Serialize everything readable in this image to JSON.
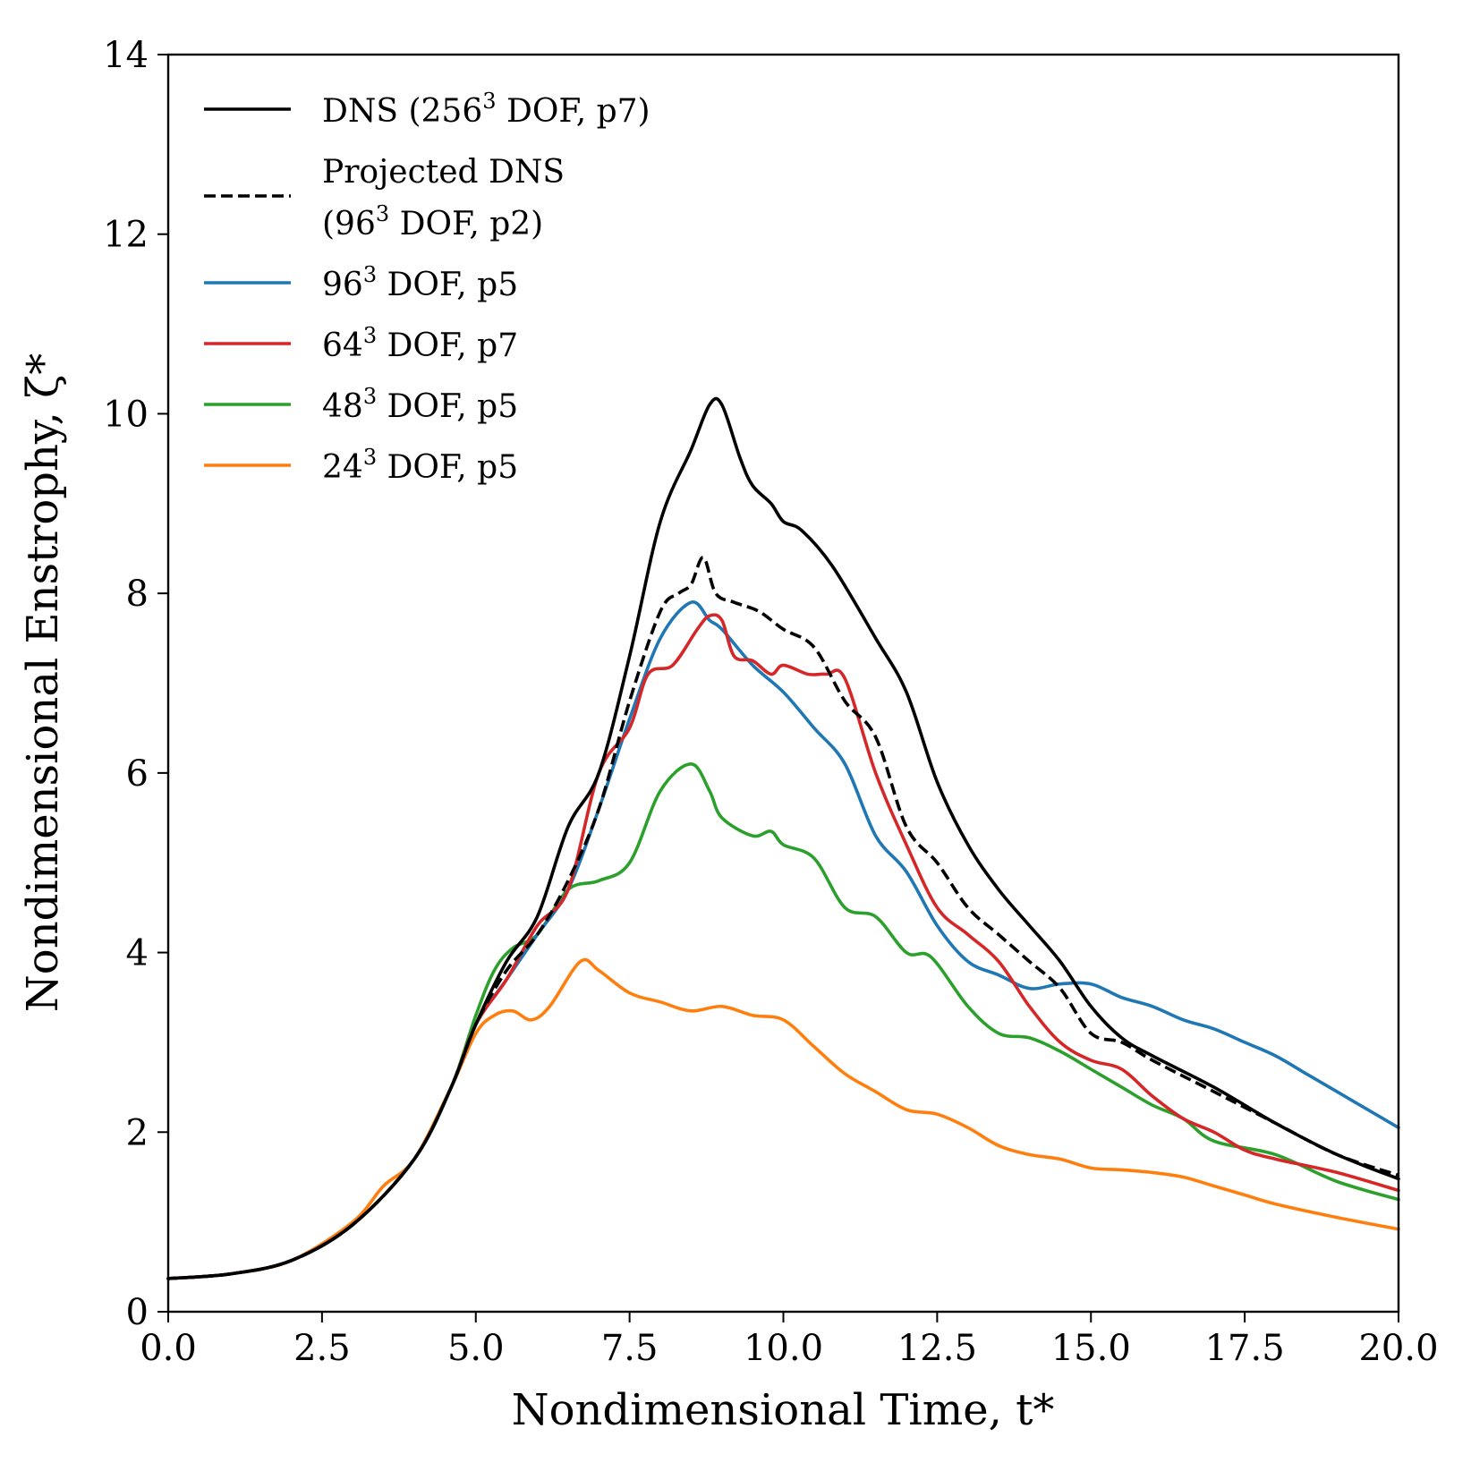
{
  "chart_data": {
    "type": "line",
    "title": "",
    "xlabel": "Nondimensional Time, t*",
    "ylabel": "Nondimensional Enstrophy, ζ*",
    "xlim": [
      0,
      20
    ],
    "ylim": [
      0,
      14
    ],
    "x_ticks": [
      "0.0",
      "2.5",
      "5.0",
      "7.5",
      "10.0",
      "12.5",
      "15.0",
      "17.5",
      "20.0"
    ],
    "y_ticks": [
      "0",
      "2",
      "4",
      "6",
      "8",
      "10",
      "12",
      "14"
    ],
    "grid": false,
    "legend_position": "top-left",
    "series": [
      {
        "name": "DNS (256³ DOF, p7)",
        "legend_lines": [
          "DNS (256³ DOF, p7)"
        ],
        "color": "#000000",
        "dash": "solid",
        "points": [
          [
            0,
            0.37
          ],
          [
            1,
            0.42
          ],
          [
            2,
            0.57
          ],
          [
            3,
            0.97
          ],
          [
            4,
            1.7
          ],
          [
            4.6,
            2.5
          ],
          [
            5,
            3.2
          ],
          [
            5.5,
            3.9
          ],
          [
            6,
            4.4
          ],
          [
            6.5,
            5.4
          ],
          [
            7,
            6.0
          ],
          [
            7.5,
            7.3
          ],
          [
            8,
            8.8
          ],
          [
            8.5,
            9.6
          ],
          [
            8.8,
            10.1
          ],
          [
            9,
            10.1
          ],
          [
            9.3,
            9.5
          ],
          [
            9.5,
            9.2
          ],
          [
            9.8,
            9.0
          ],
          [
            10,
            8.8
          ],
          [
            10.3,
            8.7
          ],
          [
            10.8,
            8.3
          ],
          [
            11.5,
            7.5
          ],
          [
            12,
            6.9
          ],
          [
            12.5,
            5.9
          ],
          [
            13,
            5.2
          ],
          [
            13.5,
            4.7
          ],
          [
            14,
            4.3
          ],
          [
            14.5,
            3.9
          ],
          [
            15,
            3.4
          ],
          [
            15.5,
            3.05
          ],
          [
            16,
            2.85
          ],
          [
            17,
            2.5
          ],
          [
            18,
            2.1
          ],
          [
            19,
            1.75
          ],
          [
            20,
            1.48
          ]
        ]
      },
      {
        "name": "Projected DNS (96³ DOF, p2)",
        "legend_lines": [
          "Projected DNS",
          "(96³ DOF, p2)"
        ],
        "color": "#000000",
        "dash": "dashed",
        "points": [
          [
            0,
            0.37
          ],
          [
            1,
            0.42
          ],
          [
            2,
            0.57
          ],
          [
            3,
            0.97
          ],
          [
            4,
            1.7
          ],
          [
            4.6,
            2.5
          ],
          [
            5,
            3.2
          ],
          [
            5.5,
            3.8
          ],
          [
            6,
            4.2
          ],
          [
            6.5,
            4.8
          ],
          [
            7,
            5.6
          ],
          [
            7.5,
            6.8
          ],
          [
            8,
            7.8
          ],
          [
            8.3,
            8.0
          ],
          [
            8.5,
            8.1
          ],
          [
            8.7,
            8.4
          ],
          [
            8.9,
            8.0
          ],
          [
            9.2,
            7.9
          ],
          [
            9.6,
            7.8
          ],
          [
            10,
            7.6
          ],
          [
            10.5,
            7.4
          ],
          [
            11,
            6.8
          ],
          [
            11.5,
            6.4
          ],
          [
            12,
            5.4
          ],
          [
            12.5,
            5.0
          ],
          [
            13,
            4.5
          ],
          [
            13.5,
            4.2
          ],
          [
            14,
            3.9
          ],
          [
            14.5,
            3.6
          ],
          [
            15,
            3.1
          ],
          [
            15.5,
            3.0
          ],
          [
            16,
            2.8
          ],
          [
            17,
            2.45
          ],
          [
            18,
            2.1
          ],
          [
            19,
            1.75
          ],
          [
            20,
            1.52
          ]
        ]
      },
      {
        "name": "96³ DOF, p5",
        "legend_lines": [
          "96³ DOF, p5"
        ],
        "color": "#1f77b4",
        "dash": "solid",
        "points": [
          [
            0,
            0.37
          ],
          [
            1,
            0.42
          ],
          [
            2,
            0.57
          ],
          [
            3,
            0.97
          ],
          [
            4,
            1.7
          ],
          [
            4.6,
            2.5
          ],
          [
            5,
            3.2
          ],
          [
            5.5,
            3.7
          ],
          [
            6,
            4.2
          ],
          [
            6.5,
            4.7
          ],
          [
            7,
            5.6
          ],
          [
            7.5,
            6.6
          ],
          [
            8,
            7.5
          ],
          [
            8.5,
            7.9
          ],
          [
            8.8,
            7.7
          ],
          [
            9,
            7.6
          ],
          [
            9.5,
            7.2
          ],
          [
            10,
            6.9
          ],
          [
            10.5,
            6.5
          ],
          [
            11,
            6.1
          ],
          [
            11.5,
            5.3
          ],
          [
            12,
            4.9
          ],
          [
            12.5,
            4.3
          ],
          [
            13,
            3.9
          ],
          [
            13.5,
            3.75
          ],
          [
            14,
            3.6
          ],
          [
            14.5,
            3.65
          ],
          [
            15,
            3.65
          ],
          [
            15.5,
            3.5
          ],
          [
            16,
            3.4
          ],
          [
            16.5,
            3.25
          ],
          [
            17,
            3.15
          ],
          [
            17.5,
            3.0
          ],
          [
            18,
            2.85
          ],
          [
            18.5,
            2.65
          ],
          [
            19,
            2.45
          ],
          [
            19.5,
            2.25
          ],
          [
            20,
            2.05
          ]
        ]
      },
      {
        "name": "64³ DOF, p7",
        "legend_lines": [
          "64³ DOF, p7"
        ],
        "color": "#d62728",
        "dash": "solid",
        "points": [
          [
            0,
            0.37
          ],
          [
            1,
            0.42
          ],
          [
            2,
            0.57
          ],
          [
            3,
            0.97
          ],
          [
            4,
            1.7
          ],
          [
            4.6,
            2.5
          ],
          [
            5,
            3.2
          ],
          [
            5.5,
            3.7
          ],
          [
            6,
            4.3
          ],
          [
            6.5,
            4.7
          ],
          [
            7,
            6.0
          ],
          [
            7.5,
            6.5
          ],
          [
            7.8,
            7.1
          ],
          [
            8.2,
            7.2
          ],
          [
            8.6,
            7.6
          ],
          [
            8.8,
            7.75
          ],
          [
            9,
            7.7
          ],
          [
            9.2,
            7.3
          ],
          [
            9.5,
            7.25
          ],
          [
            9.8,
            7.1
          ],
          [
            10,
            7.2
          ],
          [
            10.4,
            7.1
          ],
          [
            10.7,
            7.1
          ],
          [
            11,
            7.05
          ],
          [
            11.5,
            6.0
          ],
          [
            12,
            5.2
          ],
          [
            12.5,
            4.5
          ],
          [
            13,
            4.2
          ],
          [
            13.5,
            3.9
          ],
          [
            14,
            3.4
          ],
          [
            14.5,
            3.0
          ],
          [
            15,
            2.8
          ],
          [
            15.5,
            2.7
          ],
          [
            16,
            2.4
          ],
          [
            16.5,
            2.15
          ],
          [
            17,
            2.0
          ],
          [
            17.5,
            1.8
          ],
          [
            18,
            1.7
          ],
          [
            19,
            1.55
          ],
          [
            20,
            1.35
          ]
        ]
      },
      {
        "name": "48³ DOF, p5",
        "legend_lines": [
          "48³ DOF, p5"
        ],
        "color": "#2ca02c",
        "dash": "solid",
        "points": [
          [
            0,
            0.37
          ],
          [
            1,
            0.42
          ],
          [
            2,
            0.57
          ],
          [
            3,
            0.97
          ],
          [
            4,
            1.7
          ],
          [
            4.6,
            2.5
          ],
          [
            5,
            3.3
          ],
          [
            5.3,
            3.8
          ],
          [
            5.6,
            4.05
          ],
          [
            6,
            4.2
          ],
          [
            6.5,
            4.7
          ],
          [
            7,
            4.8
          ],
          [
            7.5,
            5.0
          ],
          [
            8,
            5.8
          ],
          [
            8.5,
            6.1
          ],
          [
            8.8,
            5.8
          ],
          [
            9,
            5.5
          ],
          [
            9.5,
            5.3
          ],
          [
            9.8,
            5.35
          ],
          [
            10,
            5.2
          ],
          [
            10.5,
            5.05
          ],
          [
            11,
            4.5
          ],
          [
            11.5,
            4.4
          ],
          [
            12,
            4.0
          ],
          [
            12.4,
            3.95
          ],
          [
            13,
            3.4
          ],
          [
            13.5,
            3.1
          ],
          [
            14,
            3.05
          ],
          [
            14.5,
            2.9
          ],
          [
            15,
            2.7
          ],
          [
            15.5,
            2.5
          ],
          [
            16,
            2.3
          ],
          [
            16.5,
            2.15
          ],
          [
            17,
            1.9
          ],
          [
            18,
            1.75
          ],
          [
            19,
            1.45
          ],
          [
            20,
            1.25
          ]
        ]
      },
      {
        "name": "24³ DOF, p5",
        "legend_lines": [
          "24³ DOF, p5"
        ],
        "color": "#ff7f0e",
        "dash": "solid",
        "points": [
          [
            0,
            0.37
          ],
          [
            1,
            0.42
          ],
          [
            2,
            0.57
          ],
          [
            3,
            1.0
          ],
          [
            3.5,
            1.4
          ],
          [
            4,
            1.7
          ],
          [
            4.6,
            2.5
          ],
          [
            5,
            3.1
          ],
          [
            5.3,
            3.3
          ],
          [
            5.6,
            3.35
          ],
          [
            5.9,
            3.25
          ],
          [
            6.2,
            3.4
          ],
          [
            6.7,
            3.9
          ],
          [
            7,
            3.8
          ],
          [
            7.5,
            3.55
          ],
          [
            8,
            3.45
          ],
          [
            8.5,
            3.35
          ],
          [
            9,
            3.4
          ],
          [
            9.5,
            3.3
          ],
          [
            10,
            3.25
          ],
          [
            10.5,
            2.95
          ],
          [
            11,
            2.65
          ],
          [
            11.5,
            2.45
          ],
          [
            12,
            2.25
          ],
          [
            12.5,
            2.2
          ],
          [
            13,
            2.05
          ],
          [
            13.5,
            1.85
          ],
          [
            14,
            1.75
          ],
          [
            14.5,
            1.7
          ],
          [
            15,
            1.6
          ],
          [
            15.5,
            1.58
          ],
          [
            16,
            1.55
          ],
          [
            16.5,
            1.5
          ],
          [
            17,
            1.4
          ],
          [
            17.5,
            1.3
          ],
          [
            18,
            1.2
          ],
          [
            19,
            1.05
          ],
          [
            20,
            0.92
          ]
        ]
      }
    ]
  }
}
